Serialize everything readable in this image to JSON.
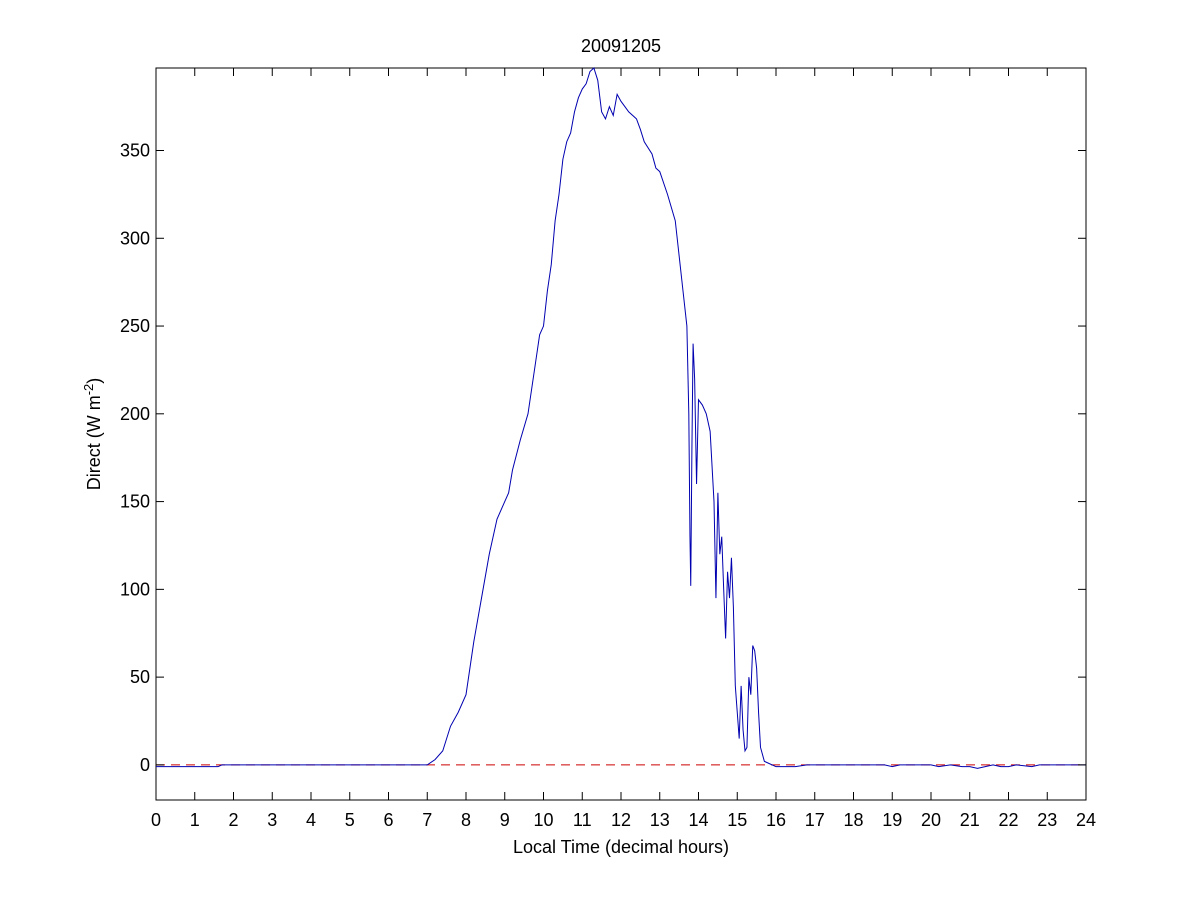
{
  "chart_data": {
    "type": "line",
    "title": "20091205",
    "xlabel": "Local Time (decimal hours)",
    "ylabel_main": "Direct (W m",
    "ylabel_sup": "-2",
    "ylabel_close": ")",
    "xlim": [
      0,
      24
    ],
    "ylim": [
      -20,
      397
    ],
    "xticks": [
      0,
      1,
      2,
      3,
      4,
      5,
      6,
      7,
      8,
      9,
      10,
      11,
      12,
      13,
      14,
      15,
      16,
      17,
      18,
      19,
      20,
      21,
      22,
      23,
      24
    ],
    "yticks": [
      0,
      50,
      100,
      150,
      200,
      250,
      300,
      350
    ],
    "grid": false,
    "colors": {
      "series": "#0000b0",
      "reference": "#cc0000"
    },
    "reference_line": {
      "y": 0,
      "style": "dashed"
    },
    "series": [
      {
        "points": [
          [
            0,
            -1
          ],
          [
            1.6,
            -1
          ],
          [
            1.7,
            0
          ],
          [
            6.8,
            0
          ],
          [
            7.0,
            0
          ],
          [
            7.2,
            3
          ],
          [
            7.4,
            8
          ],
          [
            7.6,
            22
          ],
          [
            7.8,
            30
          ],
          [
            8.0,
            40
          ],
          [
            8.2,
            70
          ],
          [
            8.4,
            95
          ],
          [
            8.6,
            120
          ],
          [
            8.8,
            140
          ],
          [
            9.0,
            150
          ],
          [
            9.1,
            155
          ],
          [
            9.2,
            168
          ],
          [
            9.4,
            185
          ],
          [
            9.6,
            200
          ],
          [
            9.8,
            230
          ],
          [
            9.9,
            245
          ],
          [
            10.0,
            250
          ],
          [
            10.1,
            270
          ],
          [
            10.2,
            285
          ],
          [
            10.3,
            310
          ],
          [
            10.4,
            325
          ],
          [
            10.5,
            345
          ],
          [
            10.6,
            355
          ],
          [
            10.7,
            360
          ],
          [
            10.8,
            372
          ],
          [
            10.9,
            380
          ],
          [
            11.0,
            385
          ],
          [
            11.1,
            388
          ],
          [
            11.2,
            395
          ],
          [
            11.3,
            397
          ],
          [
            11.4,
            390
          ],
          [
            11.5,
            372
          ],
          [
            11.6,
            368
          ],
          [
            11.7,
            375
          ],
          [
            11.8,
            370
          ],
          [
            11.9,
            382
          ],
          [
            12.0,
            378
          ],
          [
            12.2,
            372
          ],
          [
            12.4,
            368
          ],
          [
            12.5,
            362
          ],
          [
            12.6,
            355
          ],
          [
            12.8,
            348
          ],
          [
            12.9,
            340
          ],
          [
            13.0,
            338
          ],
          [
            13.2,
            325
          ],
          [
            13.4,
            310
          ],
          [
            13.5,
            290
          ],
          [
            13.6,
            270
          ],
          [
            13.7,
            250
          ],
          [
            13.75,
            200
          ],
          [
            13.78,
            130
          ],
          [
            13.8,
            102
          ],
          [
            13.83,
            180
          ],
          [
            13.86,
            240
          ],
          [
            13.9,
            220
          ],
          [
            13.95,
            160
          ],
          [
            14.0,
            208
          ],
          [
            14.1,
            205
          ],
          [
            14.2,
            200
          ],
          [
            14.3,
            190
          ],
          [
            14.4,
            150
          ],
          [
            14.45,
            95
          ],
          [
            14.5,
            155
          ],
          [
            14.55,
            120
          ],
          [
            14.6,
            130
          ],
          [
            14.65,
            100
          ],
          [
            14.7,
            72
          ],
          [
            14.75,
            110
          ],
          [
            14.8,
            95
          ],
          [
            14.85,
            118
          ],
          [
            14.9,
            90
          ],
          [
            14.95,
            45
          ],
          [
            15.0,
            30
          ],
          [
            15.05,
            15
          ],
          [
            15.1,
            45
          ],
          [
            15.15,
            20
          ],
          [
            15.2,
            8
          ],
          [
            15.25,
            10
          ],
          [
            15.3,
            50
          ],
          [
            15.35,
            40
          ],
          [
            15.4,
            68
          ],
          [
            15.45,
            65
          ],
          [
            15.5,
            55
          ],
          [
            15.55,
            30
          ],
          [
            15.6,
            10
          ],
          [
            15.7,
            2
          ],
          [
            15.8,
            1
          ],
          [
            16.0,
            -1
          ],
          [
            16.5,
            -1
          ],
          [
            16.8,
            0
          ],
          [
            18.5,
            0
          ],
          [
            18.8,
            0
          ],
          [
            19.0,
            -1
          ],
          [
            19.2,
            0
          ],
          [
            20.0,
            0
          ],
          [
            20.2,
            -1
          ],
          [
            20.5,
            0
          ],
          [
            20.8,
            -1
          ],
          [
            21.0,
            -1
          ],
          [
            21.2,
            -2
          ],
          [
            21.4,
            -1
          ],
          [
            21.6,
            0
          ],
          [
            21.8,
            -1
          ],
          [
            22.0,
            -1
          ],
          [
            22.2,
            0
          ],
          [
            22.6,
            -1
          ],
          [
            22.8,
            0
          ],
          [
            24,
            0
          ]
        ]
      }
    ]
  }
}
